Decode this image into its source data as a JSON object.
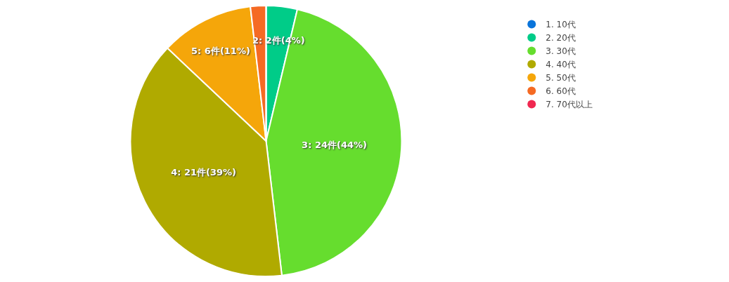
{
  "chart_data": {
    "type": "pie",
    "categories": [
      "1. 10代",
      "2. 20代",
      "3. 30代",
      "4. 40代",
      "5. 50代",
      "6. 60代",
      "7. 70代以上"
    ],
    "values": [
      0,
      2,
      24,
      21,
      6,
      1,
      0
    ],
    "colors": [
      "#0a74da",
      "#00cc88",
      "#66dd2e",
      "#b0aa00",
      "#f5a60a",
      "#f56a23",
      "#f02850"
    ],
    "value_labels": [
      null,
      "2: 2件(4%)",
      "3: 24件(44%)",
      "4: 21件(39%)",
      "5: 6件(11%)",
      null,
      null
    ],
    "legend": "top right"
  }
}
